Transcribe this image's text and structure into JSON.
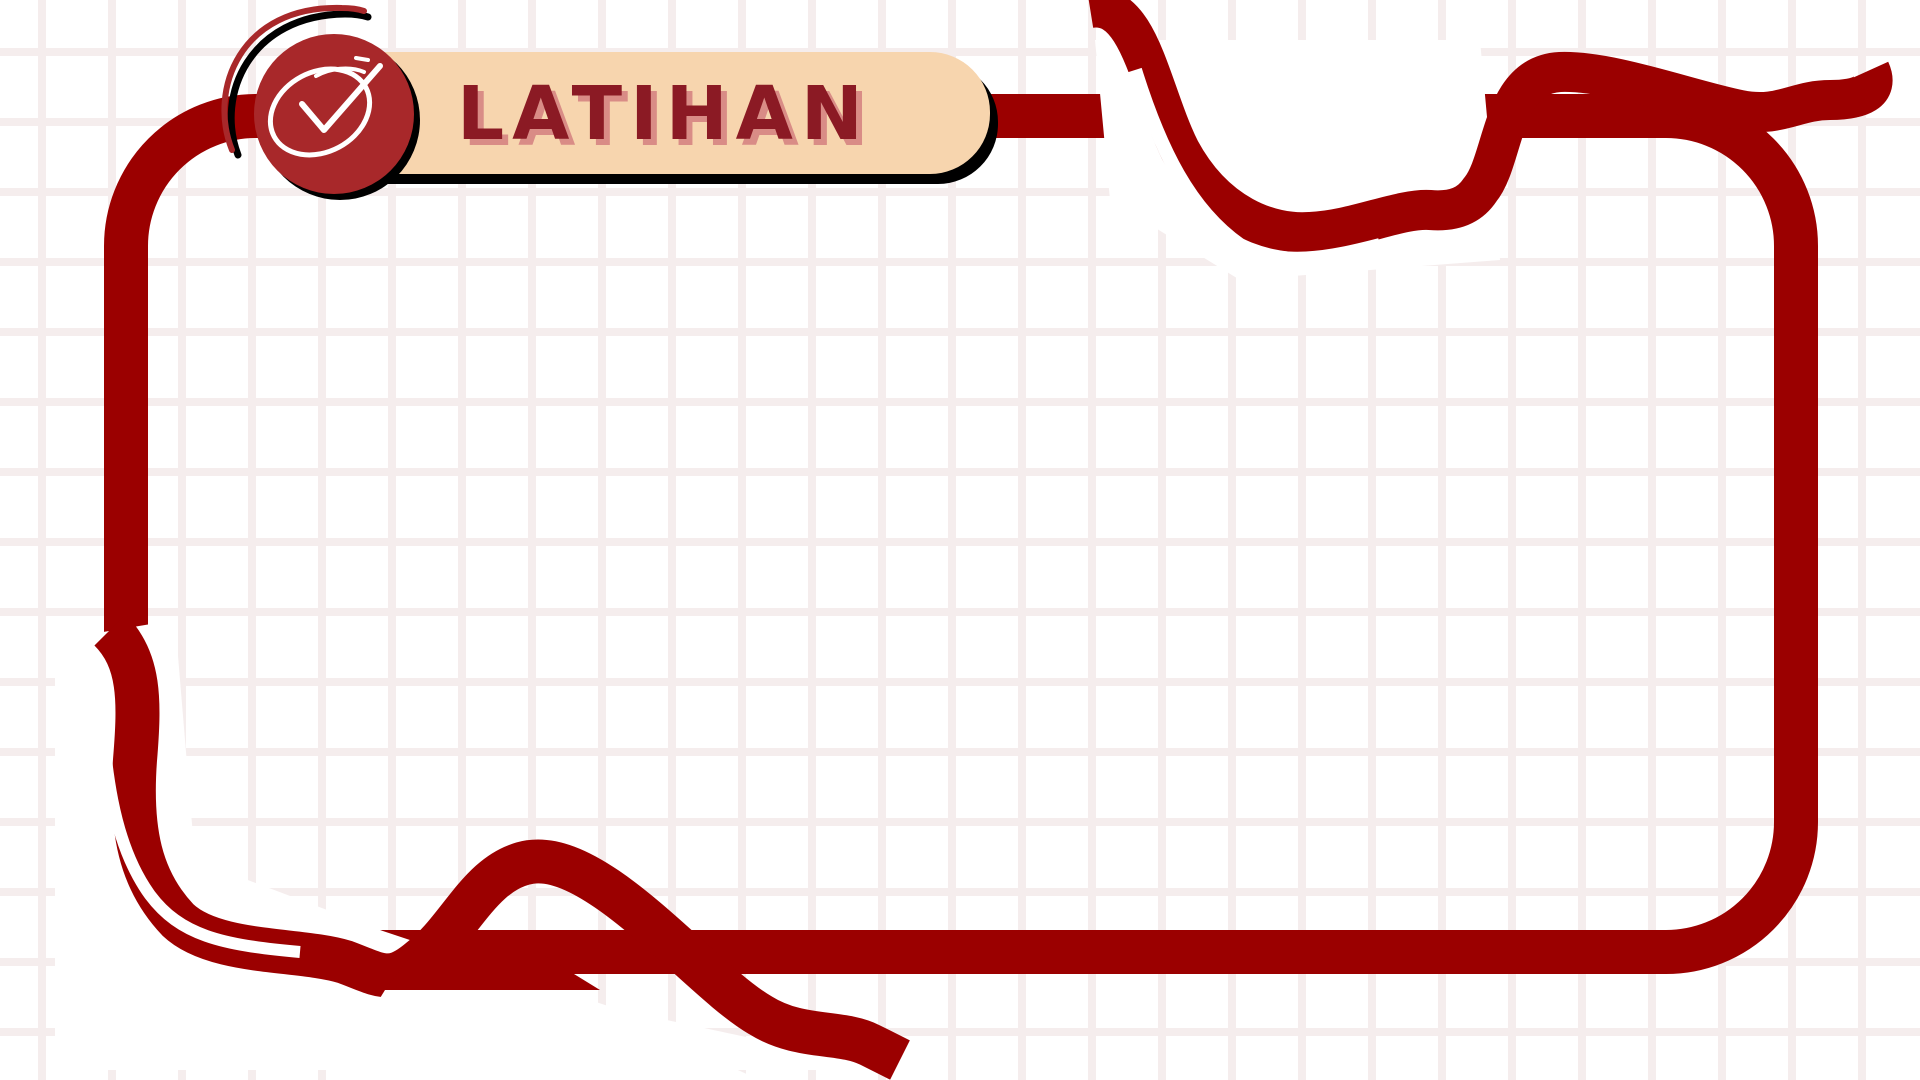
{
  "title": "LATIHAN",
  "icons": {
    "badge": "checkmark-icon"
  },
  "colors": {
    "frame": "#9b0000",
    "badge": "#a8282a",
    "pill": "#f7d5ae",
    "title_text": "#8b1a24",
    "title_shadow": "#d98c86",
    "grid": "#f5eded"
  }
}
